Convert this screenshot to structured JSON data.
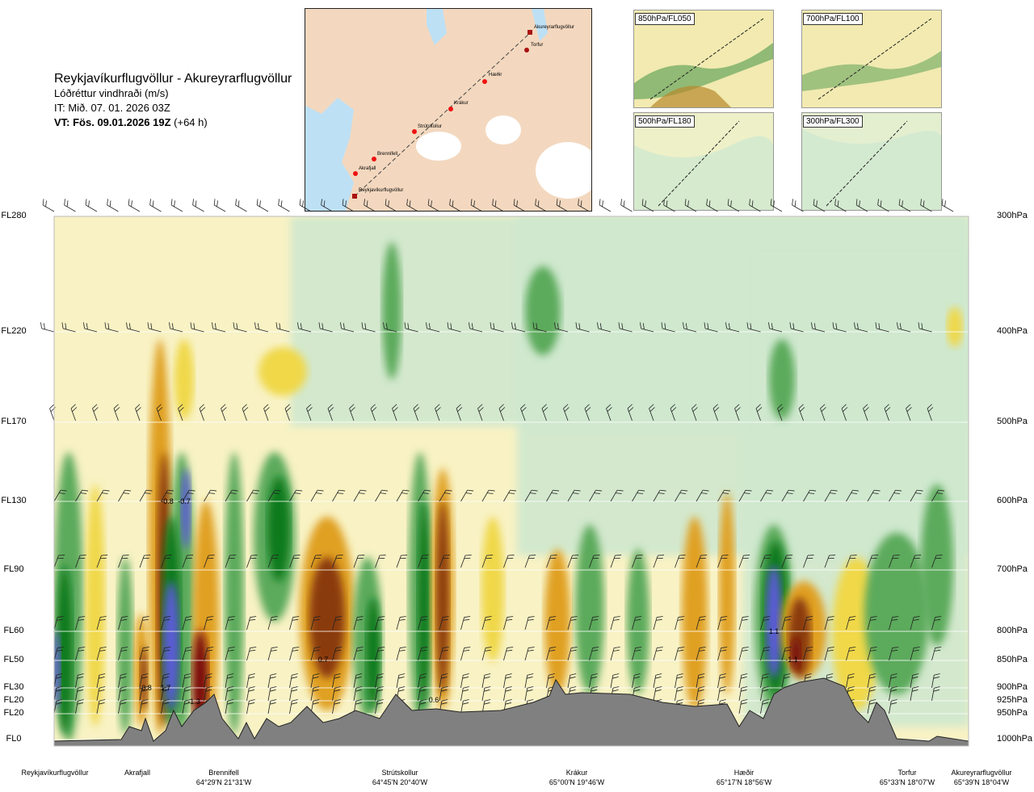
{
  "header": {
    "route": "Reykjavíkurflugvöllur - Akureyrarflugvöllur",
    "parameter": "Lóðréttur vindhraði (m/s)",
    "issue": "IT: Mið. 07. 01. 2026 03Z",
    "valid_bold": "VT: Fös. 09.01.2026 19Z",
    "valid_offset": "(+64 h)"
  },
  "route_map": {
    "waypoints": [
      {
        "name": "Akureyrarflugvöllur"
      },
      {
        "name": "Torfur"
      },
      {
        "name": "Hæðir"
      },
      {
        "name": "Krákur"
      },
      {
        "name": "Strútskollur"
      },
      {
        "name": "Brennifell"
      },
      {
        "name": "Akrafjall"
      },
      {
        "name": "Reykjavíkurflugvöllur"
      }
    ]
  },
  "mini_maps": [
    {
      "label": "850hPa/FL050"
    },
    {
      "label": "700hPa/FL100"
    },
    {
      "label": "500hPa/FL180"
    },
    {
      "label": "300hPa/FL300"
    }
  ],
  "chart_data": {
    "type": "heatmap",
    "title": "Lóðréttur vindhraði (m/s)",
    "levels": [
      {
        "fl": "FL280",
        "hpa": "300hPa"
      },
      {
        "fl": "FL220",
        "hpa": "400hPa"
      },
      {
        "fl": "FL170",
        "hpa": "500hPa"
      },
      {
        "fl": "FL130",
        "hpa": "600hPa"
      },
      {
        "fl": "FL90",
        "hpa": "700hPa"
      },
      {
        "fl": "FL60",
        "hpa": "800hPa"
      },
      {
        "fl": "FL50",
        "hpa": "850hPa"
      },
      {
        "fl": "FL30",
        "hpa": "900hPa"
      },
      {
        "fl": "FL20",
        "hpa": "925hPa"
      },
      {
        "fl": "FL20",
        "hpa": "950hPa"
      },
      {
        "fl": "FL0",
        "hpa": "1000hPa"
      }
    ],
    "annotations": [
      "-0.8",
      "0.7",
      "-0.8",
      "1.7",
      "-1.3",
      "-0.7",
      "0.6",
      "1.1",
      "-1.1"
    ],
    "x_labels": [
      {
        "name": "Reykjavíkurflugvöllur",
        "coord": ""
      },
      {
        "name": "Akrafjall",
        "coord": ""
      },
      {
        "name": "Brennifell",
        "coord": "64°29'N 21°31'W"
      },
      {
        "name": "Strútskollur",
        "coord": "64°45'N 20°40'W"
      },
      {
        "name": "Krákur",
        "coord": "65°00'N 19°46'W"
      },
      {
        "name": "Hæðir",
        "coord": "65°17'N 18°56'W"
      },
      {
        "name": "Torfur",
        "coord": "65°33'N 18°07'W"
      },
      {
        "name": "Akureyrarflugvöllur",
        "coord": "65°39'N 18°04'W"
      }
    ],
    "colors": {
      "strong_up": "#5b5bd6",
      "up2": "#0a7a1e",
      "up1": "#5caa5c",
      "weak_up": "#cfe8cf",
      "neutral": "#f8f2c4",
      "weak_down": "#f0d84a",
      "down1": "#e0a020",
      "down2": "#8a3a10",
      "strong_down": "#7a1010",
      "terrain": "#808080"
    }
  }
}
